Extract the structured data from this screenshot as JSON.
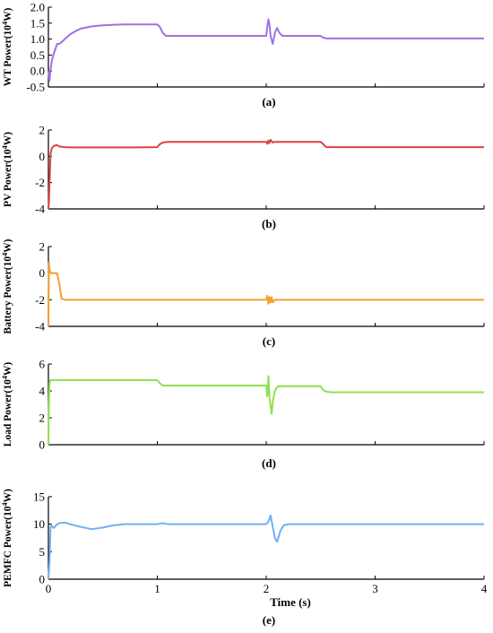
{
  "chart_data": [
    {
      "type": "line",
      "panel_label": "(a)",
      "ylabel_text": "WT Power(10",
      "ylabel_exp": "4",
      "ylabel_unit": "W)",
      "xlim": [
        0,
        4
      ],
      "ylim": [
        -0.5,
        2.0
      ],
      "yticks": [
        -0.5,
        0.0,
        0.5,
        1.0,
        1.5,
        2.0
      ],
      "ytick_labels": [
        "-0.5",
        "0.0",
        "0.5",
        "1.0",
        "1.5",
        "2.0"
      ],
      "color": "#a070e0",
      "series": [
        {
          "x": [
            0,
            0.01,
            0.02,
            0.03,
            0.05,
            0.08,
            0.1,
            0.12,
            0.15,
            0.2,
            0.25,
            0.3,
            0.4,
            0.5,
            0.6,
            0.7,
            0.8,
            0.9,
            1.0,
            1.02,
            1.05,
            1.08,
            1.1,
            1.5,
            1.9,
            2.0,
            2.01,
            2.02,
            2.03,
            2.04,
            2.06,
            2.08,
            2.1,
            2.12,
            2.15,
            2.2,
            2.5,
            2.52,
            2.55,
            2.6,
            3.0,
            3.5,
            4.0
          ],
          "y": [
            0,
            -0.3,
            0.05,
            0.3,
            0.55,
            0.85,
            0.85,
            0.9,
            1.0,
            1.15,
            1.25,
            1.33,
            1.4,
            1.43,
            1.45,
            1.46,
            1.46,
            1.46,
            1.46,
            1.4,
            1.2,
            1.1,
            1.1,
            1.1,
            1.1,
            1.1,
            1.4,
            1.62,
            1.45,
            1.1,
            0.85,
            1.2,
            1.35,
            1.2,
            1.1,
            1.1,
            1.1,
            1.05,
            1.02,
            1.02,
            1.02,
            1.02,
            1.02
          ]
        }
      ]
    },
    {
      "type": "line",
      "panel_label": "(b)",
      "ylabel_text": "PV Power(10",
      "ylabel_exp": "4",
      "ylabel_unit": "W)",
      "xlim": [
        0,
        4
      ],
      "ylim": [
        -4,
        2
      ],
      "yticks": [
        -4,
        -2,
        0,
        2
      ],
      "ytick_labels": [
        "-4",
        "-2",
        "0",
        "2"
      ],
      "color": "#e04040",
      "series": [
        {
          "x": [
            0,
            0.005,
            0.01,
            0.02,
            0.03,
            0.05,
            0.08,
            0.1,
            0.15,
            0.2,
            0.3,
            0.5,
            0.8,
            1.0,
            1.02,
            1.05,
            1.1,
            1.5,
            2.0,
            2.01,
            2.02,
            2.03,
            2.04,
            2.06,
            2.08,
            2.1,
            2.5,
            2.52,
            2.55,
            2.6,
            3.0,
            4.0
          ],
          "y": [
            -4,
            -3.5,
            -2,
            0.2,
            0.6,
            0.8,
            0.85,
            0.75,
            0.7,
            0.68,
            0.68,
            0.68,
            0.68,
            0.7,
            0.9,
            1.05,
            1.1,
            1.1,
            1.1,
            0.95,
            1.2,
            1.0,
            1.25,
            1.05,
            1.1,
            1.1,
            1.1,
            0.95,
            0.7,
            0.7,
            0.7,
            0.7
          ]
        }
      ]
    },
    {
      "type": "line",
      "panel_label": "(c)",
      "ylabel_text": "Battery Power(10",
      "ylabel_exp": "4",
      "ylabel_unit": "W)",
      "xlim": [
        0,
        4
      ],
      "ylim": [
        -4,
        2
      ],
      "yticks": [
        -4,
        -2,
        0,
        2
      ],
      "ytick_labels": [
        "-4",
        "-2",
        "0",
        "2"
      ],
      "color": "#f0a030",
      "series": [
        {
          "x": [
            0,
            0.005,
            0.01,
            0.02,
            0.03,
            0.05,
            0.08,
            0.1,
            0.12,
            0.15,
            0.2,
            0.5,
            1.0,
            1.5,
            2.0,
            2.01,
            2.02,
            2.03,
            2.04,
            2.05,
            2.06,
            2.08,
            2.1,
            2.5,
            3.0,
            4.0
          ],
          "y": [
            -4,
            0.8,
            0.3,
            0.0,
            0.0,
            0.0,
            0.0,
            -0.8,
            -1.9,
            -2.0,
            -2.0,
            -2.0,
            -2.0,
            -2.0,
            -2.0,
            -1.7,
            -2.3,
            -1.8,
            -2.2,
            -1.8,
            -2.2,
            -2.0,
            -2.0,
            -2.0,
            -2.0,
            -2.0
          ]
        }
      ]
    },
    {
      "type": "line",
      "panel_label": "(d)",
      "ylabel_text": "Load Power(10",
      "ylabel_exp": "4",
      "ylabel_unit": "W)",
      "xlim": [
        0,
        4
      ],
      "ylim": [
        0,
        6
      ],
      "yticks": [
        0,
        2,
        4,
        6
      ],
      "ytick_labels": [
        "0",
        "2",
        "4",
        "6"
      ],
      "color": "#90e050",
      "series": [
        {
          "x": [
            0,
            0.005,
            0.01,
            0.02,
            0.05,
            0.2,
            0.5,
            1.0,
            1.02,
            1.05,
            1.1,
            1.5,
            2.0,
            2.01,
            2.02,
            2.03,
            2.05,
            2.06,
            2.08,
            2.1,
            2.12,
            2.15,
            2.2,
            2.5,
            2.52,
            2.55,
            2.6,
            3.0,
            4.0
          ],
          "y": [
            0,
            3.0,
            4.6,
            4.8,
            4.8,
            4.8,
            4.8,
            4.8,
            4.6,
            4.4,
            4.4,
            4.4,
            4.4,
            3.6,
            5.1,
            3.5,
            2.3,
            3.2,
            4.0,
            4.3,
            4.35,
            4.35,
            4.35,
            4.35,
            4.1,
            3.95,
            3.9,
            3.9,
            3.9
          ]
        }
      ]
    },
    {
      "type": "line",
      "panel_label": "(e)",
      "ylabel_text": "PEMFC Power(10",
      "ylabel_exp": "4",
      "ylabel_unit": "W)",
      "xlabel": "Time (s)",
      "xlim": [
        0,
        4
      ],
      "xticks": [
        0,
        1,
        2,
        3,
        4
      ],
      "xtick_labels": [
        "0",
        "1",
        "2",
        "3",
        "4"
      ],
      "ylim": [
        0,
        15
      ],
      "yticks": [
        0,
        5,
        10,
        15
      ],
      "ytick_labels": [
        "0",
        "5",
        "10",
        "15"
      ],
      "color": "#70b0f0",
      "series": [
        {
          "x": [
            0,
            0.01,
            0.02,
            0.03,
            0.05,
            0.07,
            0.1,
            0.15,
            0.2,
            0.3,
            0.4,
            0.5,
            0.6,
            0.7,
            0.8,
            0.9,
            1.0,
            1.05,
            1.1,
            1.5,
            1.9,
            2.0,
            2.02,
            2.04,
            2.06,
            2.08,
            2.1,
            2.13,
            2.16,
            2.2,
            2.5,
            3.0,
            4.0
          ],
          "y": [
            0,
            3,
            9.5,
            9.7,
            9.3,
            9.8,
            10.2,
            10.3,
            10.0,
            9.5,
            9.1,
            9.4,
            9.8,
            10.0,
            10.0,
            10.0,
            10.0,
            10.2,
            10.0,
            10.0,
            10.0,
            10.0,
            10.5,
            11.6,
            9.5,
            7.5,
            6.8,
            8.8,
            9.8,
            10.0,
            10.0,
            10.0,
            10.0
          ]
        }
      ]
    }
  ]
}
